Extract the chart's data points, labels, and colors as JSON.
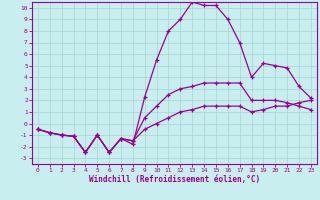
{
  "xlabel": "Windchill (Refroidissement éolien,°C)",
  "bg_color": "#c8eef0",
  "grid_color": "#a0d8d0",
  "line_color": "#990099",
  "xlim": [
    -0.5,
    23.5
  ],
  "ylim": [
    -3.5,
    10.5
  ],
  "xticks": [
    0,
    1,
    2,
    3,
    4,
    5,
    6,
    7,
    8,
    9,
    10,
    11,
    12,
    13,
    14,
    15,
    16,
    17,
    18,
    19,
    20,
    21,
    22,
    23
  ],
  "yticks": [
    -3,
    -2,
    -1,
    0,
    1,
    2,
    3,
    4,
    5,
    6,
    7,
    8,
    9,
    10
  ],
  "line1_x": [
    0,
    1,
    2,
    3,
    4,
    5,
    6,
    7,
    8,
    9,
    10,
    11,
    12,
    13,
    14,
    15,
    16,
    17,
    18,
    19,
    20,
    21,
    22,
    23
  ],
  "line1_y": [
    -0.5,
    -0.8,
    -1.0,
    -1.1,
    -2.5,
    -1.0,
    -2.5,
    -1.3,
    -1.8,
    2.3,
    5.5,
    8.0,
    9.0,
    10.5,
    10.2,
    10.2,
    9.0,
    7.0,
    4.0,
    5.2,
    5.0,
    4.8,
    3.2,
    2.2
  ],
  "line2_x": [
    0,
    1,
    2,
    3,
    4,
    5,
    6,
    7,
    8,
    9,
    10,
    11,
    12,
    13,
    14,
    15,
    16,
    17,
    18,
    19,
    20,
    21,
    22,
    23
  ],
  "line2_y": [
    -0.5,
    -0.8,
    -1.0,
    -1.1,
    -2.5,
    -1.0,
    -2.5,
    -1.3,
    -1.5,
    0.5,
    1.5,
    2.5,
    3.0,
    3.2,
    3.5,
    3.5,
    3.5,
    3.5,
    2.0,
    2.0,
    2.0,
    1.8,
    1.5,
    1.2
  ],
  "line3_x": [
    0,
    1,
    2,
    3,
    4,
    5,
    6,
    7,
    8,
    9,
    10,
    11,
    12,
    13,
    14,
    15,
    16,
    17,
    18,
    19,
    20,
    21,
    22,
    23
  ],
  "line3_y": [
    -0.5,
    -0.8,
    -1.0,
    -1.1,
    -2.5,
    -1.0,
    -2.5,
    -1.3,
    -1.5,
    -0.5,
    0.0,
    0.5,
    1.0,
    1.2,
    1.5,
    1.5,
    1.5,
    1.5,
    1.0,
    1.2,
    1.5,
    1.5,
    1.8,
    2.0
  ]
}
